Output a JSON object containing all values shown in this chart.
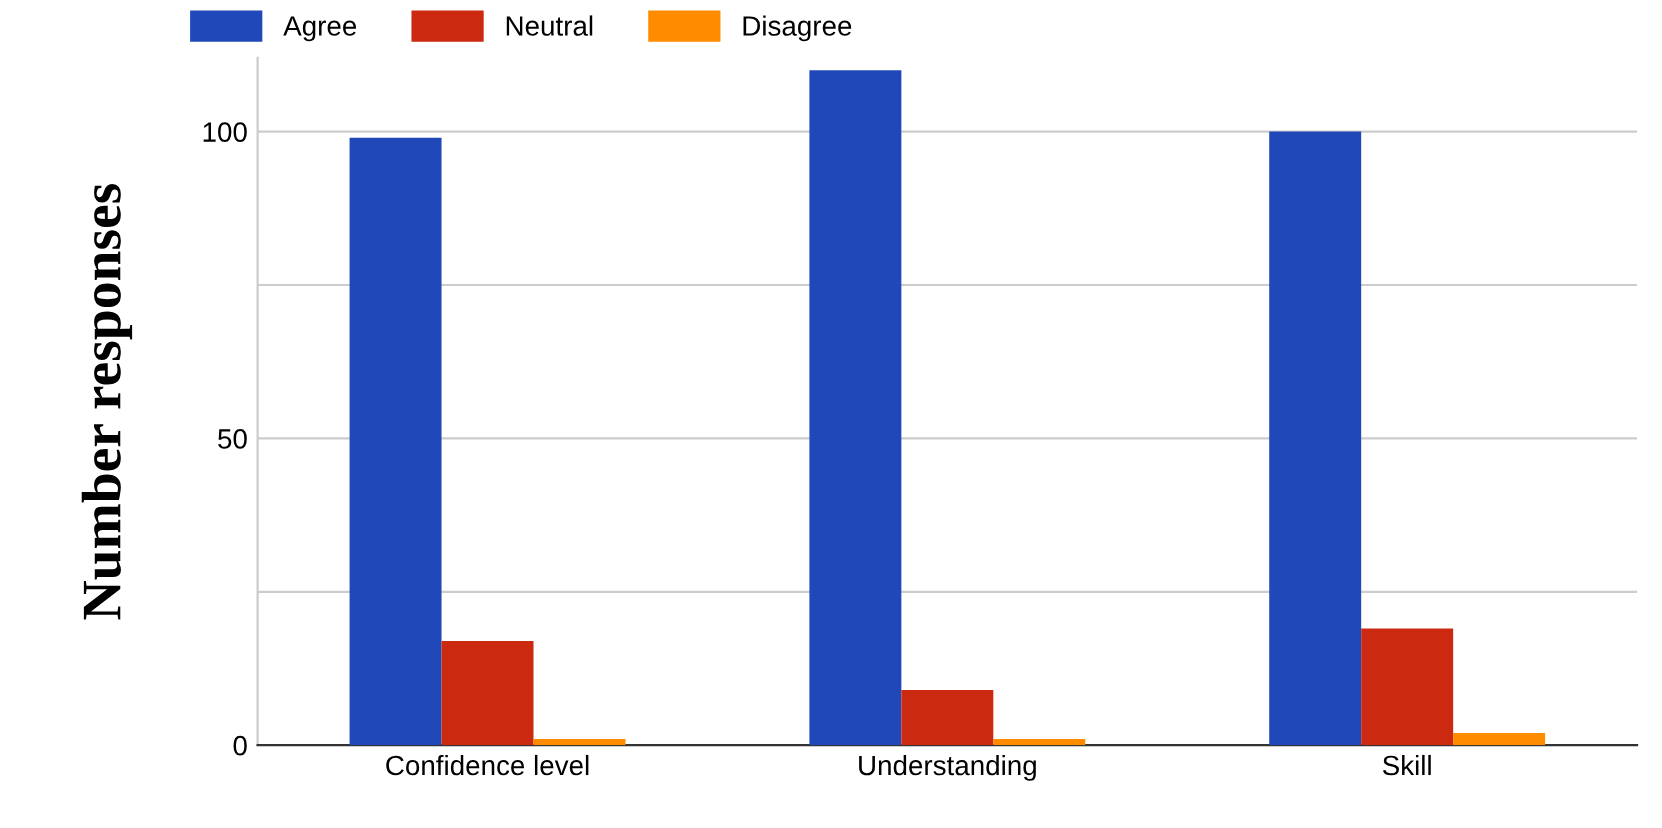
{
  "chart_data": {
    "type": "bar",
    "ylabel": "Number responses",
    "categories": [
      "Confidence level",
      "Understanding",
      "Skill"
    ],
    "series": [
      {
        "name": "Agree",
        "color": "#2148b8",
        "values": [
          99,
          110,
          100
        ]
      },
      {
        "name": "Neutral",
        "color": "#cc2a10",
        "values": [
          17,
          9,
          19
        ]
      },
      {
        "name": "Disagree",
        "color": "#ff8c00",
        "values": [
          1,
          1,
          2
        ]
      }
    ],
    "ylim": [
      0,
      112
    ],
    "yticks": [
      0,
      {
        "value": 25,
        "label": null
      },
      50,
      {
        "value": 75,
        "label": null
      },
      100
    ],
    "grid": "y",
    "legend": "top left"
  }
}
